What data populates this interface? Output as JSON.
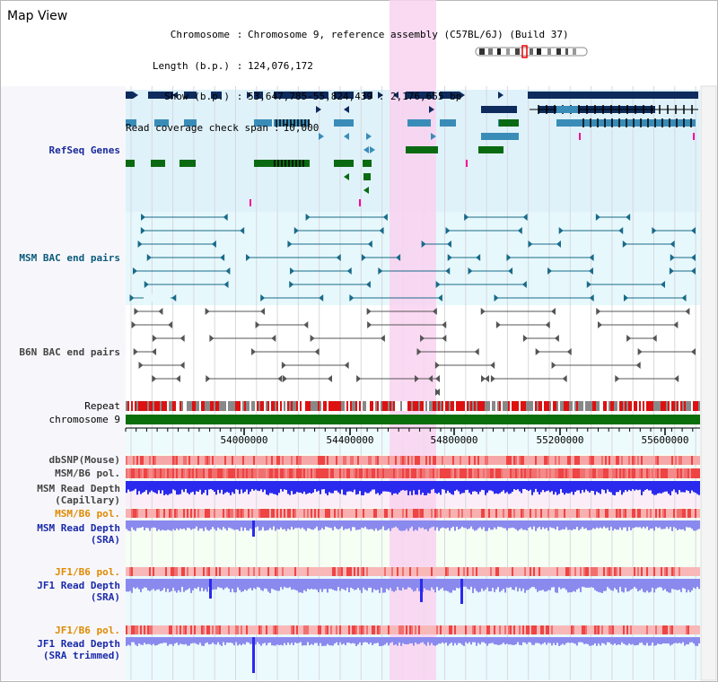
{
  "header": {
    "title": "Map View",
    "info_rows": [
      {
        "key": "Chromosome",
        "sep": ":",
        "value": "Chromosome 9, reference assembly (C57BL/6J) (Build 37)"
      },
      {
        "key": "Length (b.p.)",
        "sep": ":",
        "value": "124,076,172"
      },
      {
        "key": "Show (b.p.)",
        "sep": ":",
        "value": "53,647,785-55,824,439 : 2,176,655 bp"
      },
      {
        "key": "Read coverage check span",
        "sep": ":",
        "value": "10,000"
      }
    ]
  },
  "tracks": {
    "refseq": {
      "label": "RefSeq Genes",
      "color": "#1a2a9a"
    },
    "msm_bac": {
      "label": "MSM BAC end pairs",
      "color": "#0a5a7a"
    },
    "b6n_bac": {
      "label": "B6N BAC end pairs",
      "color": "#444444"
    },
    "repeat": {
      "label": "Repeat"
    },
    "chromosome": {
      "label": "chromosome 9"
    },
    "dbsnp": {
      "label": "dbSNP(Mouse)"
    },
    "msm_b6_pol_1": {
      "label": "MSM/B6 pol."
    },
    "msm_read_depth_cap": {
      "label": "MSM Read Depth\n(Capillary)"
    },
    "msm_b6_pol_2": {
      "label": "MSM/B6 pol.",
      "color": "#e08a00"
    },
    "msm_read_depth_sra": {
      "label": "MSM Read Depth\n(SRA)",
      "color": "#1a2aaa"
    },
    "jf1_b6_pol_1": {
      "label": "JF1/B6 pol.",
      "color": "#e08a00"
    },
    "jf1_read_depth_sra": {
      "label": "JF1 Read Depth\n(SRA)",
      "color": "#1a2aaa"
    },
    "jf1_b6_pol_2": {
      "label": "JF1/B6 pol.",
      "color": "#e08a00"
    },
    "jf1_read_depth_trim": {
      "label": "JF1 Read Depth\n(SRA trimmed)",
      "color": "#1a2aaa"
    }
  },
  "axis": {
    "ticks": [
      "54000000",
      "54400000",
      "54800000",
      "55200000",
      "55600000"
    ]
  },
  "colors": {
    "highlight": "#f9d2f0",
    "refseq_bg": "#dff2fa",
    "msm_bg": "#e6f8fb",
    "gene_dark": "#0d2b5c",
    "gene_mid": "#3a8cb8",
    "gene_green": "#0a6a12",
    "repeat_red": "#dd1111",
    "chrom_green": "#0a6e0a",
    "pol_red": "#ee4444",
    "depth_blue": "#2a2aee",
    "depth_lavender": "#8a8aee"
  }
}
